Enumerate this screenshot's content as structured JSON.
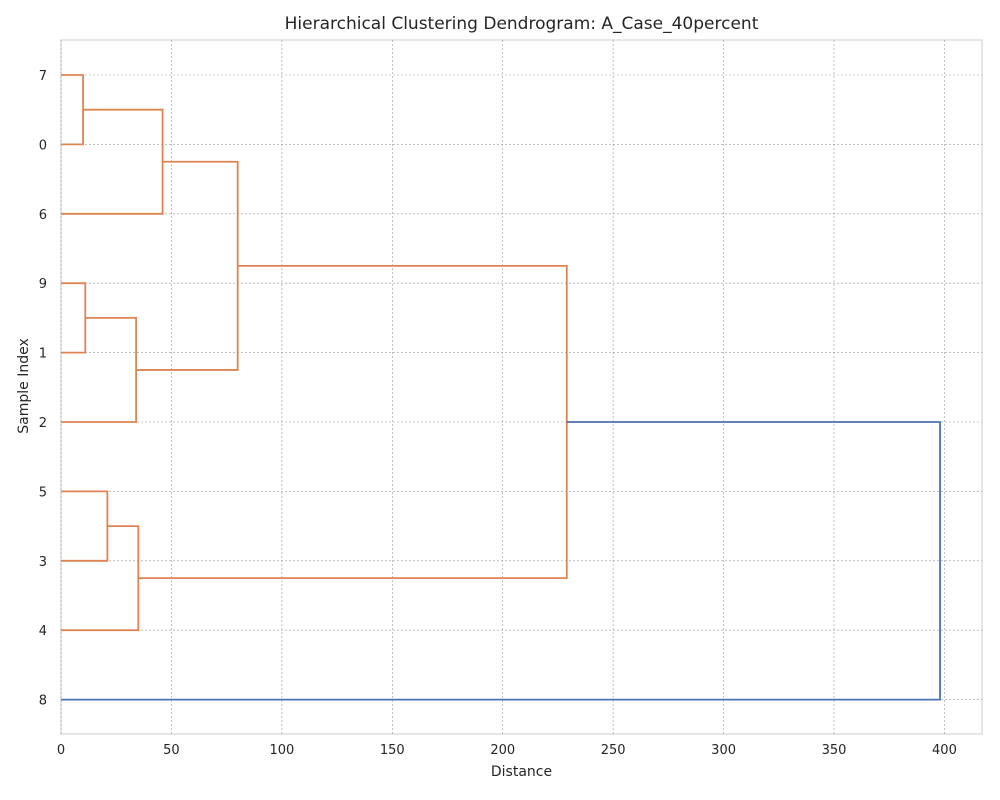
{
  "chart_data": {
    "type": "dendrogram",
    "orientation": "horizontal",
    "title": "Hierarchical Clustering Dendrogram: A_Case_40percent",
    "xlabel": "Distance",
    "ylabel": "Sample Index",
    "xlim": [
      0,
      417
    ],
    "xticks": [
      0,
      50,
      100,
      150,
      200,
      250,
      300,
      350,
      400
    ],
    "leaf_order": [
      "7",
      "0",
      "6",
      "9",
      "1",
      "2",
      "5",
      "3",
      "4",
      "8"
    ],
    "grid": true,
    "colors": {
      "cluster": "#dd8452",
      "root": "#4c72b0",
      "grid": "#999999",
      "frame": "#cccccc"
    },
    "merges": [
      {
        "left": "7",
        "right": "0",
        "distance": 10,
        "color": "cluster"
      },
      {
        "left": "9",
        "right": "1",
        "distance": 11,
        "color": "cluster"
      },
      {
        "left": "5",
        "right": "3",
        "distance": 21,
        "color": "cluster"
      },
      {
        "left": "{7,0}",
        "right": "6",
        "distance": 46,
        "color": "cluster"
      },
      {
        "left": "{9,1}",
        "right": "2",
        "distance": 34,
        "color": "cluster"
      },
      {
        "left": "{5,3}",
        "right": "4",
        "distance": 35,
        "color": "cluster"
      },
      {
        "left": "{7,0,6}",
        "right": "{9,1,2}",
        "distance": 80,
        "color": "cluster"
      },
      {
        "left": "{7,0,6,9,1,2}",
        "right": "{5,3,4}",
        "distance": 229,
        "color": "cluster"
      },
      {
        "left": "{7,0,6,9,1,2,5,3,4}",
        "right": "8",
        "distance": 398,
        "color": "root"
      }
    ]
  }
}
